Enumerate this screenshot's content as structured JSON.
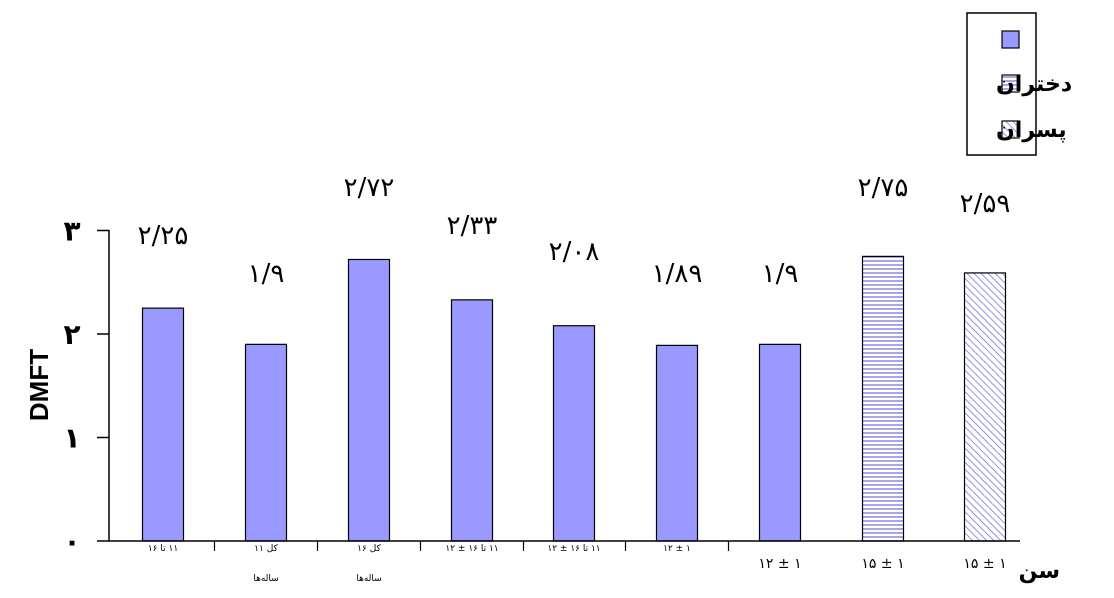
{
  "chart_data": {
    "type": "bar",
    "ylabel": "DMFT",
    "xlabel": "سن",
    "ylim": [
      0,
      3
    ],
    "yticks": [
      {
        "value": 0,
        "label": "۰"
      },
      {
        "value": 1,
        "label": "۱"
      },
      {
        "value": 2,
        "label": "۲"
      },
      {
        "value": 3,
        "label": "۳"
      }
    ],
    "grid": false,
    "legend_position": "top-right",
    "legend": [
      {
        "label": "",
        "pattern": "solid"
      },
      {
        "label": "دختران",
        "pattern": "horizontal-lines"
      },
      {
        "label": "پسران",
        "pattern": "diagonal-hatch"
      }
    ],
    "colors": {
      "bar": "#9999ff",
      "hatch": "#5555cc",
      "axis": "#000000",
      "outline": "#000000"
    },
    "bars": [
      {
        "value": 2.25,
        "label": "۲/۲۵",
        "category": [
          "۱۱ تا ۱۶"
        ],
        "pattern": "solid"
      },
      {
        "value": 1.9,
        "label": "۱/۹",
        "category": [
          "کل ۱۱",
          "ساله‌ها"
        ],
        "pattern": "solid"
      },
      {
        "value": 2.72,
        "label": "۲/۷۲",
        "category": [
          "کل ۱۶",
          "ساله‌ها"
        ],
        "pattern": "solid"
      },
      {
        "value": 2.33,
        "label": "۲/۳۳",
        "category": [
          "۱۱ تا ۱۶  ± ۱۲"
        ],
        "pattern": "solid"
      },
      {
        "value": 2.08,
        "label": "۲/۰۸",
        "category": [
          "۱۱ تا ۱۶  ± ۱۲"
        ],
        "pattern": "solid"
      },
      {
        "value": 1.89,
        "label": "۱/۸۹",
        "category": [
          "۱ ± ۱۲"
        ],
        "pattern": "solid"
      },
      {
        "value": 1.9,
        "label": "۱/۹",
        "category": [
          "۱ ± ۱۲"
        ],
        "pattern": "solid"
      },
      {
        "value": 2.75,
        "label": "۲/۷۵",
        "category": [
          "۱ ± ۱۵"
        ],
        "pattern": "horizontal-lines"
      },
      {
        "value": 2.59,
        "label": "۲/۵۹",
        "category": [
          "۱ ± ۱۵"
        ],
        "pattern": "diagonal-hatch"
      }
    ]
  }
}
